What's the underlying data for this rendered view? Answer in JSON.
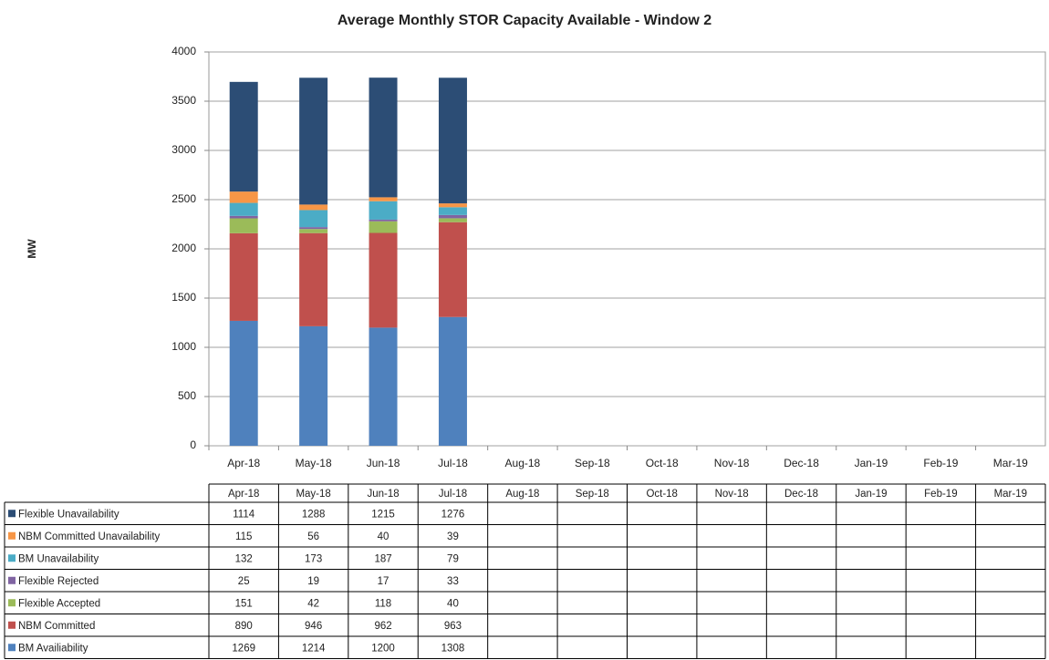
{
  "chart_data": {
    "type": "stacked_bar",
    "title": "Average Monthly STOR Capacity Available - Window 2",
    "y_label": "MW",
    "categories": [
      "Apr-18",
      "May-18",
      "Jun-18",
      "Jul-18",
      "Aug-18",
      "Sep-18",
      "Oct-18",
      "Nov-18",
      "Dec-18",
      "Jan-19",
      "Feb-19",
      "Mar-19"
    ],
    "series": [
      {
        "name": "Flexible Unavailability",
        "color": "#2c4d75",
        "values": [
          1114,
          1288,
          1215,
          1276,
          null,
          null,
          null,
          null,
          null,
          null,
          null,
          null
        ]
      },
      {
        "name": "NBM Committed Unavailability",
        "color": "#f79646",
        "values": [
          115,
          56,
          40,
          39,
          null,
          null,
          null,
          null,
          null,
          null,
          null,
          null
        ]
      },
      {
        "name": "BM Unavailability",
        "color": "#4bacc6",
        "values": [
          132,
          173,
          187,
          79,
          null,
          null,
          null,
          null,
          null,
          null,
          null,
          null
        ]
      },
      {
        "name": "Flexible Rejected",
        "color": "#8064a2",
        "values": [
          25,
          19,
          17,
          33,
          null,
          null,
          null,
          null,
          null,
          null,
          null,
          null
        ]
      },
      {
        "name": "Flexible Accepted",
        "color": "#9bbb59",
        "values": [
          151,
          42,
          118,
          40,
          null,
          null,
          null,
          null,
          null,
          null,
          null,
          null
        ]
      },
      {
        "name": "NBM Committed",
        "color": "#c0504d",
        "values": [
          890,
          946,
          962,
          963,
          null,
          null,
          null,
          null,
          null,
          null,
          null,
          null
        ]
      },
      {
        "name": "BM Availiability",
        "color": "#4f81bd",
        "values": [
          1269,
          1214,
          1200,
          1308,
          null,
          null,
          null,
          null,
          null,
          null,
          null,
          null
        ]
      }
    ],
    "ylim": [
      0,
      4000
    ],
    "yticks": [
      0,
      500,
      1000,
      1500,
      2000,
      2500,
      3000,
      3500,
      4000
    ],
    "grid": true
  }
}
